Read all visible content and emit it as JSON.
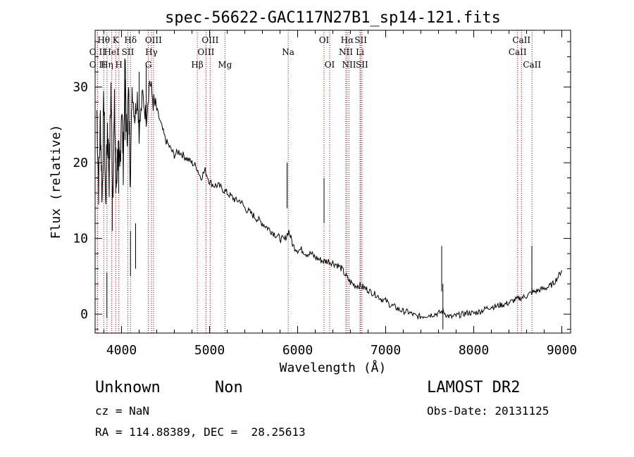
{
  "info": {
    "class": "Unknown",
    "subclass": "Non",
    "survey": "LAMOST DR2",
    "cz": "cz = NaN",
    "obs_date": "Obs-Date: 20131125",
    "coords": "RA = 114.88389, DEC =  28.25613"
  },
  "chart_data": {
    "type": "line",
    "title": "spec-56622-GAC117N27B1_sp14-121.fits",
    "xlabel": "Wavelength (Å)",
    "ylabel": "Flux (relative)",
    "xlim": [
      3700,
      9100
    ],
    "ylim": [
      -2.5,
      37.5
    ],
    "xticks": [
      4000,
      5000,
      6000,
      7000,
      8000,
      9000
    ],
    "yticks": [
      0,
      10,
      20,
      30
    ],
    "grid": false,
    "line_color": "#000000",
    "marker_color": "#b00000",
    "series": [
      {
        "values": [
          [
            3720,
            27
          ],
          [
            3740,
            17
          ],
          [
            3760,
            26
          ],
          [
            3780,
            15
          ],
          [
            3800,
            29
          ],
          [
            3820,
            14
          ],
          [
            3840,
            25
          ],
          [
            3860,
            18
          ],
          [
            3880,
            30
          ],
          [
            3900,
            16
          ],
          [
            3920,
            27
          ],
          [
            3940,
            17
          ],
          [
            3960,
            22
          ],
          [
            3980,
            18
          ],
          [
            4000,
            28
          ],
          [
            4020,
            20
          ],
          [
            4040,
            33
          ],
          [
            4060,
            23
          ],
          [
            4080,
            29
          ],
          [
            4100,
            18
          ],
          [
            4120,
            30
          ],
          [
            4150,
            26
          ],
          [
            4180,
            29
          ],
          [
            4200,
            24
          ],
          [
            4240,
            29
          ],
          [
            4280,
            26
          ],
          [
            4320,
            31
          ],
          [
            4360,
            28
          ],
          [
            4400,
            27
          ],
          [
            4450,
            25
          ],
          [
            4500,
            23
          ],
          [
            4550,
            22
          ],
          [
            4600,
            21
          ],
          [
            4650,
            21.5
          ],
          [
            4700,
            21
          ],
          [
            4750,
            20.5
          ],
          [
            4800,
            20
          ],
          [
            4850,
            19.5
          ],
          [
            4900,
            18
          ],
          [
            4950,
            19
          ],
          [
            5000,
            17.5
          ],
          [
            5050,
            17
          ],
          [
            5100,
            17
          ],
          [
            5150,
            16.5
          ],
          [
            5200,
            16
          ],
          [
            5250,
            15.5
          ],
          [
            5300,
            15
          ],
          [
            5350,
            15
          ],
          [
            5400,
            14
          ],
          [
            5450,
            13.5
          ],
          [
            5500,
            13
          ],
          [
            5550,
            12.5
          ],
          [
            5600,
            12
          ],
          [
            5650,
            11.5
          ],
          [
            5700,
            11
          ],
          [
            5750,
            10.5
          ],
          [
            5800,
            10
          ],
          [
            5850,
            9.8
          ],
          [
            5900,
            11
          ],
          [
            5950,
            9
          ],
          [
            6000,
            8.5
          ],
          [
            6050,
            8.5
          ],
          [
            6100,
            8
          ],
          [
            6150,
            8
          ],
          [
            6200,
            7.5
          ],
          [
            6250,
            7.2
          ],
          [
            6300,
            7
          ],
          [
            6350,
            7
          ],
          [
            6400,
            6.8
          ],
          [
            6450,
            6.5
          ],
          [
            6500,
            6
          ],
          [
            6550,
            5
          ],
          [
            6600,
            4.2
          ],
          [
            6650,
            3.8
          ],
          [
            6700,
            3.8
          ],
          [
            6750,
            3.5
          ],
          [
            6800,
            3.2
          ],
          [
            6850,
            2.8
          ],
          [
            6900,
            2.5
          ],
          [
            6950,
            2
          ],
          [
            7000,
            1.8
          ],
          [
            7050,
            1.2
          ],
          [
            7100,
            1
          ],
          [
            7150,
            0.6
          ],
          [
            7200,
            0.4
          ],
          [
            7250,
            0.3
          ],
          [
            7300,
            0
          ],
          [
            7350,
            -0.3
          ],
          [
            7400,
            -0.3
          ],
          [
            7450,
            -0.2
          ],
          [
            7500,
            -0.1
          ],
          [
            7550,
            0
          ],
          [
            7600,
            0.1
          ],
          [
            7650,
            0.4
          ],
          [
            7700,
            -0.2
          ],
          [
            7750,
            -0.4
          ],
          [
            7800,
            -0.2
          ],
          [
            7850,
            -0.1
          ],
          [
            7900,
            0.1
          ],
          [
            7950,
            0.2
          ],
          [
            8000,
            0.1
          ],
          [
            8050,
            0.3
          ],
          [
            8100,
            0.5
          ],
          [
            8150,
            0.8
          ],
          [
            8200,
            1
          ],
          [
            8250,
            1
          ],
          [
            8300,
            1.2
          ],
          [
            8350,
            1.3
          ],
          [
            8400,
            1.5
          ],
          [
            8450,
            1.8
          ],
          [
            8500,
            2
          ],
          [
            8550,
            2.2
          ],
          [
            8600,
            2.4
          ],
          [
            8650,
            2.8
          ],
          [
            8700,
            3
          ],
          [
            8750,
            3.2
          ],
          [
            8800,
            3.4
          ],
          [
            8850,
            3.6
          ],
          [
            8900,
            4
          ],
          [
            8950,
            4.8
          ],
          [
            9000,
            5.8
          ]
        ]
      }
    ],
    "spikes": [
      [
        3834,
        -0.5
      ],
      [
        3895,
        11
      ],
      [
        3935,
        16
      ],
      [
        3968,
        16
      ],
      [
        4040,
        31
      ],
      [
        4102,
        5
      ],
      [
        4160,
        6
      ],
      [
        4200,
        32
      ],
      [
        4280,
        33
      ],
      [
        5880,
        14
      ],
      [
        6300,
        12
      ],
      [
        7636,
        3
      ],
      [
        7650,
        -2
      ],
      [
        8660,
        3
      ]
    ],
    "lines": [
      {
        "label": "O II",
        "x": 3727,
        "row": 2
      },
      {
        "label": "Hθ",
        "x": 3798,
        "row": 0
      },
      {
        "label": "O II",
        "x": 3727,
        "row": 1
      },
      {
        "label": "Hη",
        "x": 3835,
        "row": 2
      },
      {
        "label": "HeI",
        "x": 3889,
        "row": 1
      },
      {
        "label": "H",
        "x": 3970,
        "row": 2
      },
      {
        "label": "K",
        "x": 3934,
        "row": 0
      },
      {
        "label": "SII",
        "x": 4072,
        "row": 1
      },
      {
        "label": "Hδ",
        "x": 4102,
        "row": 0
      },
      {
        "label": "OIII",
        "x": 4363,
        "row": 0
      },
      {
        "label": "Hγ",
        "x": 4340,
        "row": 1
      },
      {
        "label": "G",
        "x": 4305,
        "row": 2
      },
      {
        "label": "Hβ",
        "x": 4861,
        "row": 2
      },
      {
        "label": "OIII",
        "x": 4959,
        "row": 1
      },
      {
        "label": "OIII",
        "x": 5007,
        "row": 0
      },
      {
        "label": "Mg",
        "x": 5175,
        "row": 2
      },
      {
        "label": "Na",
        "x": 5893,
        "row": 1
      },
      {
        "label": "OI",
        "x": 6300,
        "row": 0
      },
      {
        "label": "OI",
        "x": 6364,
        "row": 2
      },
      {
        "label": "Hα",
        "x": 6563,
        "row": 0
      },
      {
        "label": "NII",
        "x": 6548,
        "row": 1
      },
      {
        "label": "NII",
        "x": 6584,
        "row": 2
      },
      {
        "label": "SII",
        "x": 6717,
        "row": 0
      },
      {
        "label": "Li",
        "x": 6708,
        "row": 1
      },
      {
        "label": "SII",
        "x": 6731,
        "row": 2
      },
      {
        "label": "CaII",
        "x": 8542,
        "row": 0
      },
      {
        "label": "CaII",
        "x": 8498,
        "row": 1
      },
      {
        "label": "CaII",
        "x": 8662,
        "row": 2
      }
    ]
  }
}
